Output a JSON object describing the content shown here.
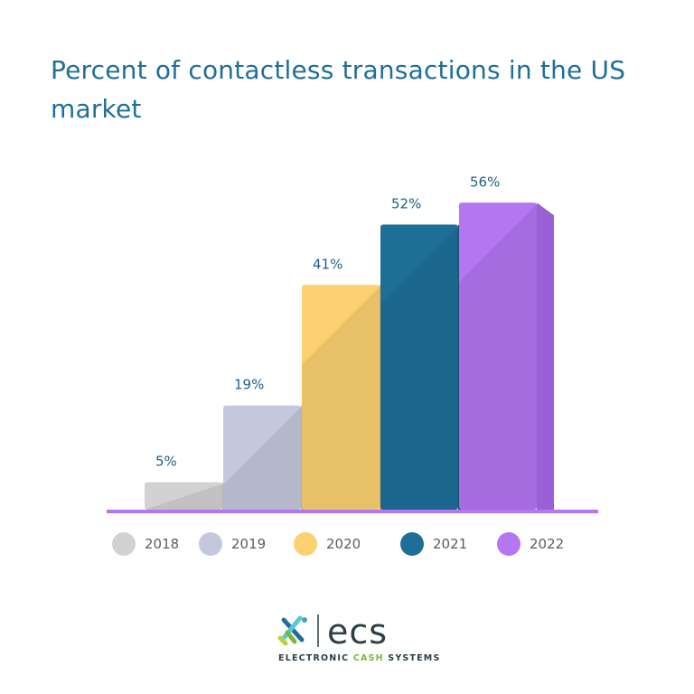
{
  "title": "Percent of contactless transactions  in the US market",
  "chart_data": {
    "type": "bar",
    "title": "Percent of contactless transactions  in the US market",
    "categories": [
      "2018",
      "2019",
      "2020",
      "2021",
      "2022"
    ],
    "values": [
      5,
      19,
      41,
      52,
      56
    ],
    "labels": [
      "5%",
      "19%",
      "41%",
      "52%",
      "56%"
    ],
    "ylim": [
      0,
      60
    ],
    "grid": false,
    "legend": "bottom",
    "colors": [
      "#d2d2d2",
      "#c5c7dd",
      "#fcd171",
      "#1e6f98",
      "#b576f2"
    ],
    "shade_colors": [
      "#b5b5b5",
      "#a9acc8",
      "#e7b04d",
      "#154d6c",
      "#9b5fd6"
    ],
    "axis_color": "#b576f2",
    "label_color": "#1f5f86"
  },
  "logo": {
    "brand": "ecs",
    "tagline_part1": "ELECTRONIC ",
    "tagline_accent": "CASH",
    "tagline_part2": " SYSTEMS"
  }
}
